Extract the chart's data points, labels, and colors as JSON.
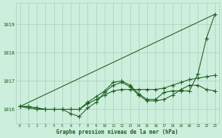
{
  "background_color": "#cceedd",
  "grid_color": "#aaccbb",
  "line_color": "#1a5c1a",
  "title": "Graphe pression niveau de la mer (hPa)",
  "xlim": [
    -0.5,
    23.5
  ],
  "ylim": [
    1015.5,
    1019.75
  ],
  "yticks": [
    1016,
    1017,
    1018,
    1019
  ],
  "xticks": [
    0,
    1,
    2,
    3,
    4,
    5,
    6,
    7,
    8,
    9,
    10,
    11,
    12,
    13,
    14,
    15,
    16,
    17,
    18,
    19,
    20,
    21,
    22,
    23
  ],
  "series": [
    {
      "x": [
        0,
        23
      ],
      "y": [
        1016.1,
        1019.35
      ],
      "marker": null,
      "markersize": 0,
      "linewidth": 0.8
    },
    {
      "x": [
        0,
        1,
        2,
        3,
        4,
        5,
        6,
        7,
        8,
        9,
        10,
        11,
        12,
        13,
        14,
        15,
        16,
        17,
        18,
        19,
        20,
        21,
        22,
        23
      ],
      "y": [
        1016.1,
        1016.1,
        1016.05,
        1016.0,
        1016.0,
        1016.0,
        1015.85,
        1015.75,
        1016.05,
        1016.25,
        1016.6,
        1016.85,
        1016.95,
        1016.8,
        1016.5,
        1016.3,
        1016.3,
        1016.35,
        1016.5,
        1016.7,
        1016.85,
        1016.85,
        1016.7,
        1016.65
      ],
      "marker": "+",
      "markersize": 4,
      "linewidth": 0.8
    },
    {
      "x": [
        0,
        1,
        2,
        3,
        4,
        5,
        6,
        7,
        8,
        9,
        10,
        11,
        12,
        13,
        14,
        15,
        16,
        17,
        18,
        19,
        20,
        21,
        22,
        23
      ],
      "y": [
        1016.1,
        1016.1,
        1016.05,
        1016.0,
        1016.0,
        1016.0,
        1016.0,
        1016.0,
        1016.2,
        1016.35,
        1016.5,
        1016.65,
        1016.7,
        1016.7,
        1016.7,
        1016.7,
        1016.7,
        1016.75,
        1016.85,
        1016.95,
        1017.05,
        1017.1,
        1017.15,
        1017.2
      ],
      "marker": "+",
      "markersize": 4,
      "linewidth": 0.8
    },
    {
      "x": [
        0,
        1,
        2,
        3,
        4,
        5,
        6,
        7,
        8,
        9,
        10,
        11,
        12,
        13,
        14,
        15,
        16,
        17,
        18,
        19,
        20,
        21,
        22,
        23
      ],
      "y": [
        1016.1,
        1016.05,
        1016.0,
        1016.0,
        1016.0,
        1016.0,
        1016.0,
        1016.0,
        1016.25,
        1016.45,
        1016.65,
        1016.95,
        1017.0,
        1016.85,
        1016.55,
        1016.35,
        1016.35,
        1016.6,
        1016.65,
        1016.65,
        1016.65,
        1017.25,
        1018.5,
        1019.35
      ],
      "marker": "+",
      "markersize": 4,
      "linewidth": 0.8
    }
  ]
}
